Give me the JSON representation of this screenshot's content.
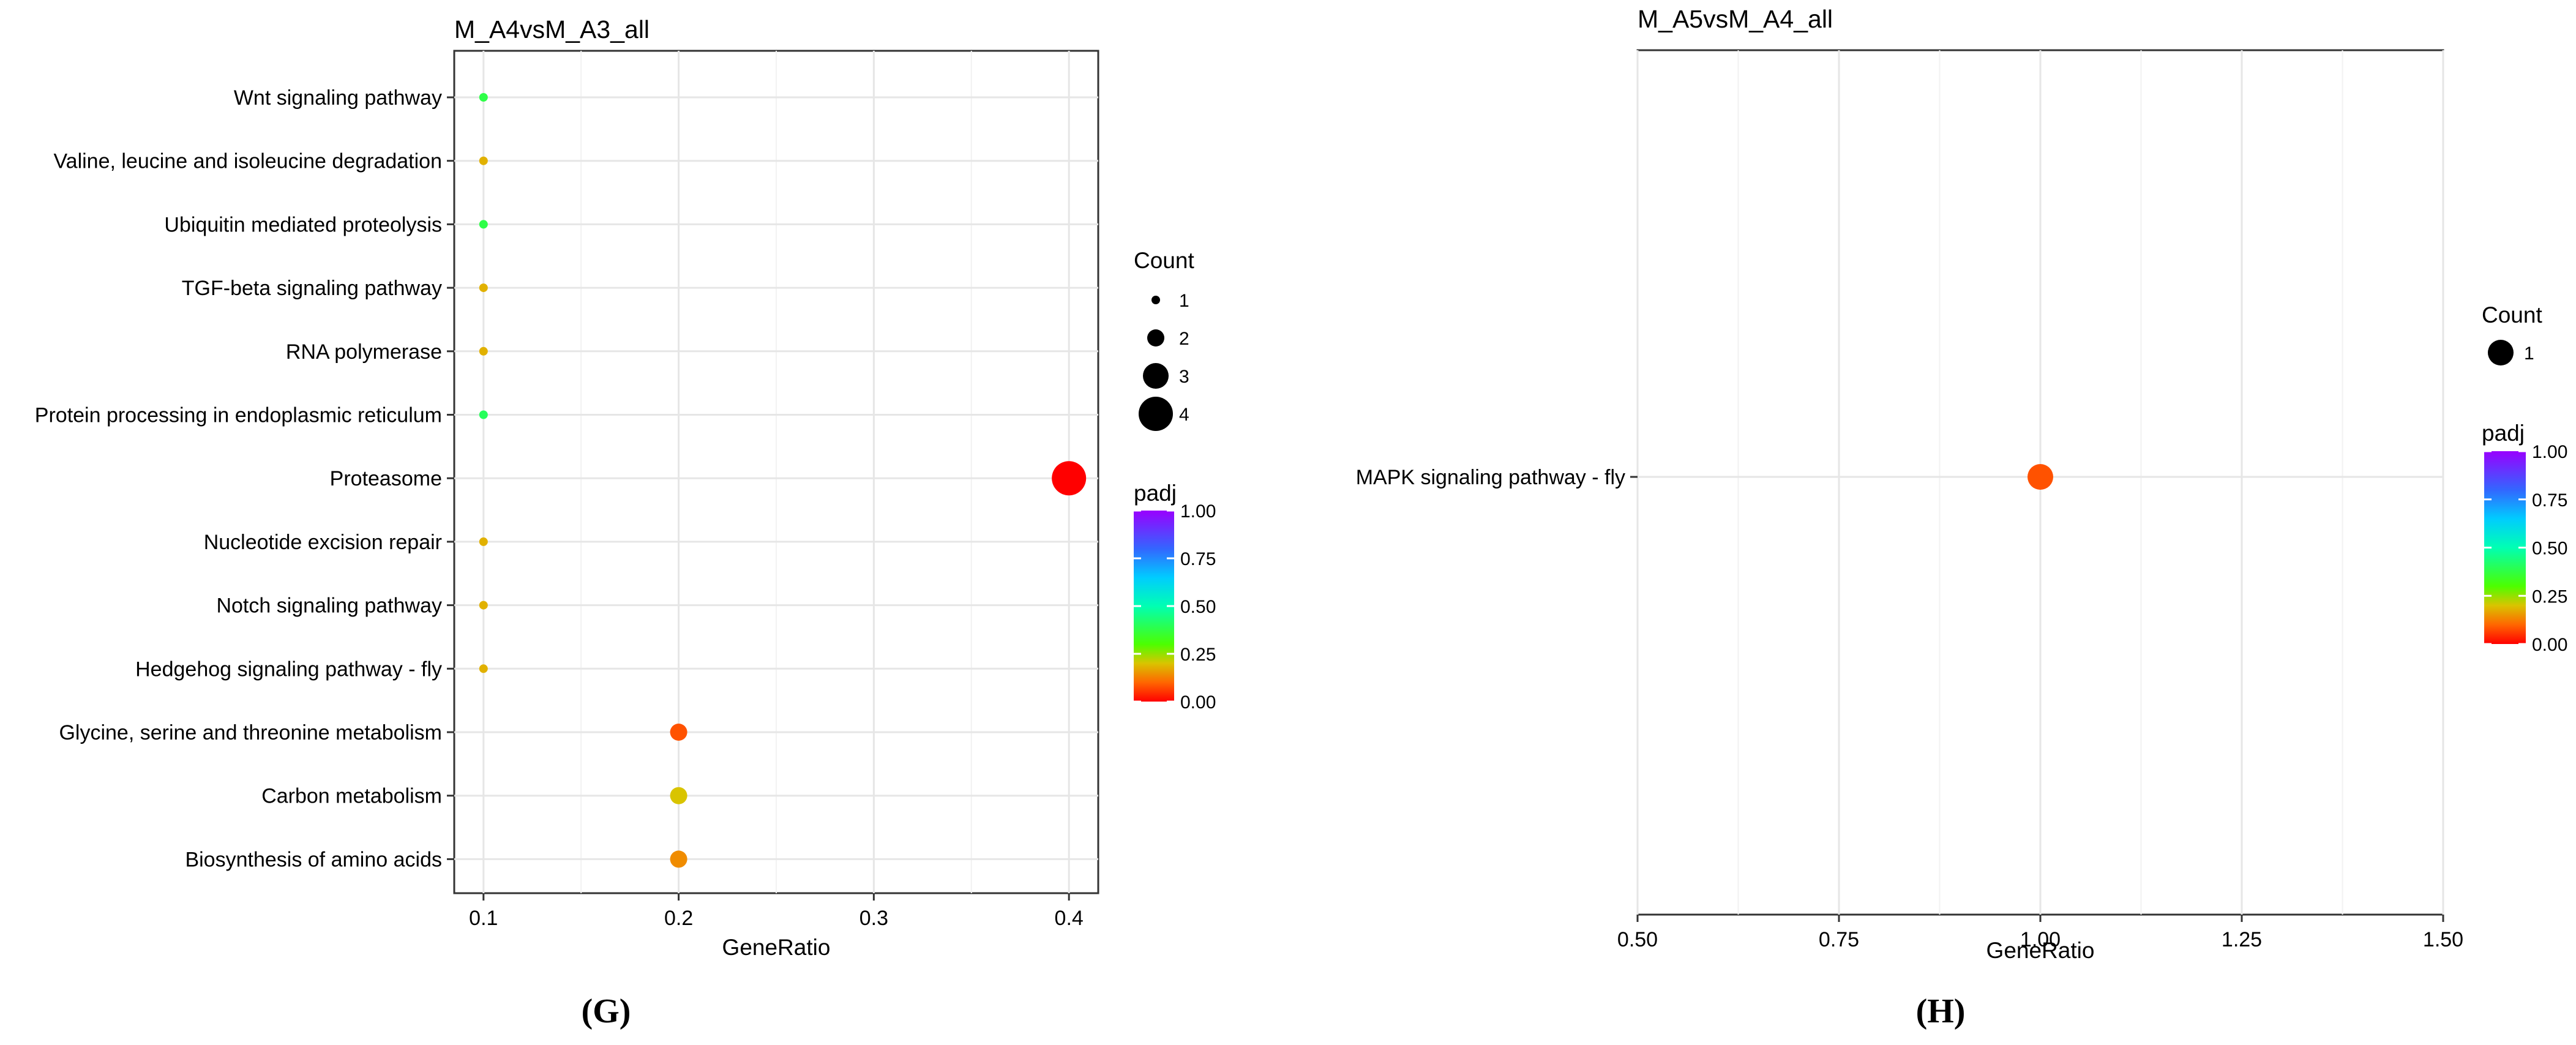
{
  "panels": [
    {
      "id": "G",
      "label": "(G)",
      "chart_data": {
        "type": "scatter",
        "title": "M_A4vsM_A3_all",
        "xlabel": "GeneRatio",
        "ylabel": "",
        "xlim": [
          0.085,
          0.415
        ],
        "xticks": [
          0.1,
          0.2,
          0.3,
          0.4
        ],
        "xtick_labels": [
          "0.1",
          "0.2",
          "0.3",
          "0.4"
        ],
        "grid": true,
        "categories": [
          "Wnt signaling pathway",
          "Valine, leucine and isoleucine degradation",
          "Ubiquitin mediated proteolysis",
          "TGF-beta signaling pathway",
          "RNA polymerase",
          "Protein processing in endoplasmic reticulum",
          "Proteasome",
          "Nucleotide excision repair",
          "Notch signaling pathway",
          "Hedgehog signaling pathway - fly",
          "Glycine, serine and threonine metabolism",
          "Carbon metabolism",
          "Biosynthesis of amino acids"
        ],
        "points": [
          {
            "term": "Wnt signaling pathway",
            "x": 0.1,
            "count": 1,
            "padj": 0.38
          },
          {
            "term": "Valine, leucine and isoleucine degradation",
            "x": 0.1,
            "count": 1,
            "padj": 0.18
          },
          {
            "term": "Ubiquitin mediated proteolysis",
            "x": 0.1,
            "count": 1,
            "padj": 0.38
          },
          {
            "term": "TGF-beta signaling pathway",
            "x": 0.1,
            "count": 1,
            "padj": 0.18
          },
          {
            "term": "RNA polymerase",
            "x": 0.1,
            "count": 1,
            "padj": 0.18
          },
          {
            "term": "Protein processing in endoplasmic reticulum",
            "x": 0.1,
            "count": 1,
            "padj": 0.4
          },
          {
            "term": "Proteasome",
            "x": 0.4,
            "count": 4,
            "padj": 0.0
          },
          {
            "term": "Nucleotide excision repair",
            "x": 0.1,
            "count": 1,
            "padj": 0.18
          },
          {
            "term": "Notch signaling pathway",
            "x": 0.1,
            "count": 1,
            "padj": 0.18
          },
          {
            "term": "Hedgehog signaling pathway - fly",
            "x": 0.1,
            "count": 1,
            "padj": 0.18
          },
          {
            "term": "Glycine, serine and threonine metabolism",
            "x": 0.2,
            "count": 2,
            "padj": 0.08
          },
          {
            "term": "Carbon metabolism",
            "x": 0.2,
            "count": 2,
            "padj": 0.2
          },
          {
            "term": "Biosynthesis of amino acids",
            "x": 0.2,
            "count": 2,
            "padj": 0.14
          }
        ],
        "legend": {
          "size_title": "Count",
          "size_levels": [
            1,
            2,
            3,
            4
          ],
          "size_labels": [
            "1",
            "2",
            "3",
            "4"
          ],
          "color_title": "padj",
          "color_ticks": [
            "0.00",
            "0.25",
            "0.50",
            "0.75",
            "1.00"
          ],
          "placement": "right"
        }
      }
    },
    {
      "id": "H",
      "label": "(H)",
      "chart_data": {
        "type": "scatter",
        "title": "M_A5vsM_A4_all",
        "xlabel": "GeneRatio",
        "ylabel": "",
        "xlim": [
          0.5,
          1.5
        ],
        "xticks": [
          0.5,
          0.75,
          1.0,
          1.25,
          1.5
        ],
        "xtick_labels": [
          "0.50",
          "0.75",
          "1.00",
          "1.25",
          "1.50"
        ],
        "grid": true,
        "categories": [
          "MAPK signaling pathway - fly"
        ],
        "points": [
          {
            "term": "MAPK signaling pathway - fly",
            "x": 1.0,
            "count": 1,
            "padj": 0.08
          }
        ],
        "legend": {
          "size_title": "Count",
          "size_levels": [
            1
          ],
          "size_labels": [
            "1"
          ],
          "color_title": "padj",
          "color_ticks": [
            "0.00",
            "0.25",
            "0.50",
            "0.75",
            "1.00"
          ],
          "placement": "right"
        }
      }
    }
  ]
}
